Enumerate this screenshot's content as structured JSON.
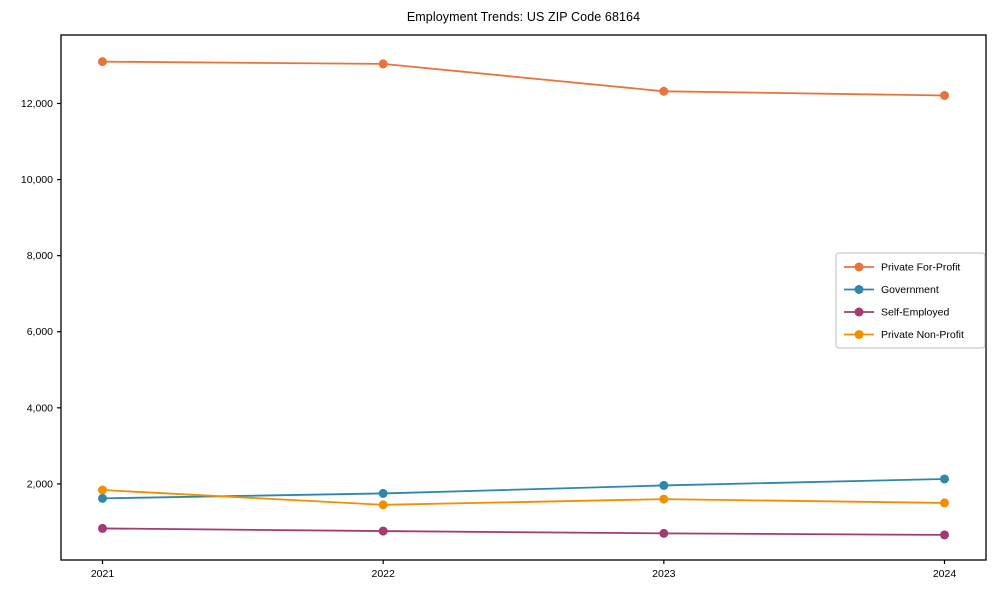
{
  "title": "Employment Trends: US ZIP Code 68164",
  "chart_data": {
    "type": "line",
    "title": "Employment Trends: US ZIP Code 68164",
    "categories": [
      "2021",
      "2022",
      "2023",
      "2024"
    ],
    "series": [
      {
        "name": "Private For-Profit",
        "color": "#E8743B",
        "values": [
          13100,
          13040,
          12320,
          12210
        ]
      },
      {
        "name": "Government",
        "color": "#2E86AB",
        "values": [
          1620,
          1750,
          1960,
          2130
        ]
      },
      {
        "name": "Self-Employed",
        "color": "#A23B72",
        "values": [
          830,
          760,
          700,
          660
        ]
      },
      {
        "name": "Private Non-Profit",
        "color": "#F18F01",
        "values": [
          1840,
          1450,
          1600,
          1500
        ]
      }
    ],
    "xlabel": "",
    "ylabel": "",
    "ylim": [
      0,
      13800
    ],
    "yticks": [
      2000,
      4000,
      6000,
      8000,
      10000,
      12000
    ],
    "ytick_labels": [
      "2,000",
      "4,000",
      "6,000",
      "8,000",
      "10,000",
      "12,000"
    ],
    "grid": false,
    "legend_position": "center-right",
    "axis_color": "#000000",
    "tick_label_color": "#000000"
  }
}
